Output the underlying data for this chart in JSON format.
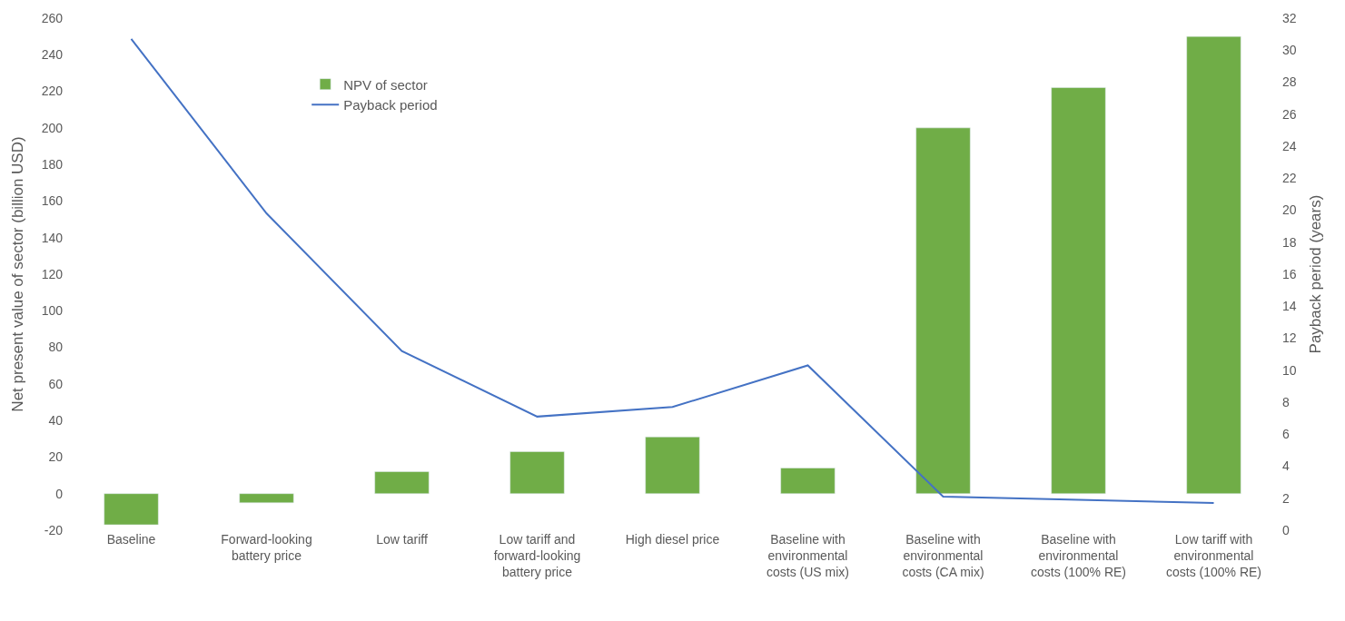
{
  "chart_data": {
    "type": "bar",
    "ylabel": "Net present value of sector (billion USD)",
    "y2label": "Payback period (years)",
    "categories": [
      "Baseline",
      "Forward-looking battery price",
      "Low tariff",
      "Low tariff and forward-looking battery price",
      "High diesel price",
      "Baseline with environmental costs (US mix)",
      "Baseline with environmental costs (CA mix)",
      "Baseline with environmental costs (100% RE)",
      "Low tariff with environmental costs (100% RE)"
    ],
    "series": [
      {
        "name": "NPV of sector",
        "color": "#70ad47",
        "values": [
          -17,
          -5,
          12,
          23,
          31,
          14,
          200,
          222,
          250
        ]
      },
      {
        "name": "Payback period",
        "type": "line",
        "axis": "y2",
        "color": "#4472c4",
        "values": [
          30.7,
          19.8,
          11.2,
          7.1,
          7.7,
          10.3,
          2.1,
          1.9,
          1.7
        ]
      }
    ],
    "ylim": [
      -20,
      260
    ],
    "yticks": [
      -20,
      0,
      20,
      40,
      60,
      80,
      100,
      120,
      140,
      160,
      180,
      200,
      220,
      240,
      260
    ],
    "y2lim": [
      0,
      32
    ],
    "y2ticks": [
      0,
      2,
      4,
      6,
      8,
      10,
      12,
      14,
      16,
      18,
      20,
      22,
      24,
      26,
      28,
      30,
      32
    ],
    "legend": "top left",
    "marker": "none"
  }
}
